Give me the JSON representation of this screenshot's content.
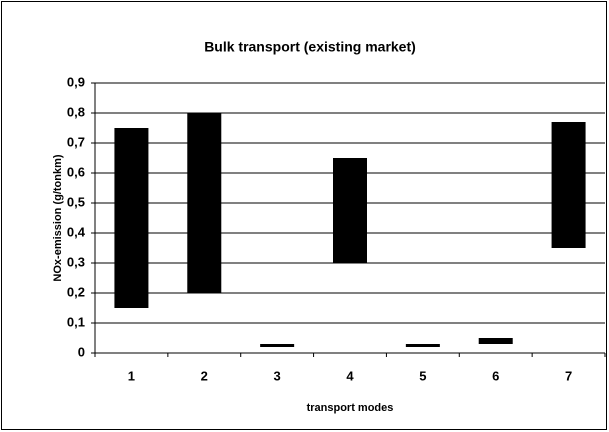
{
  "chart_data": {
    "type": "range-bar",
    "title": "Bulk transport (existing market)",
    "x_label": "transport modes",
    "y_label": "NOx-emission (g/tonkm)",
    "categories": [
      "1",
      "2",
      "3",
      "4",
      "5",
      "6",
      "7"
    ],
    "values": [
      [
        0.15,
        0.75
      ],
      [
        0.2,
        0.8
      ],
      [
        0.02,
        0.03
      ],
      [
        0.3,
        0.65
      ],
      [
        0.02,
        0.03
      ],
      [
        0.03,
        0.05
      ],
      [
        0.35,
        0.77
      ]
    ],
    "color": "#000000",
    "ylim": [
      0,
      0.9
    ],
    "yticks": [
      0,
      {
        "value": 0.1,
        "label": "0,1"
      },
      {
        "value": 0.2,
        "label": "0,2"
      },
      {
        "value": 0.3,
        "label": "0,3"
      },
      {
        "value": 0.4,
        "label": "0,4"
      },
      {
        "value": 0.5,
        "label": "0,5"
      },
      {
        "value": 0.6,
        "label": "0,6"
      },
      {
        "value": 0.7,
        "label": "0,7"
      },
      {
        "value": 0.8,
        "label": "0,8"
      },
      {
        "value": 0.9,
        "label": "0,9"
      }
    ],
    "grid": true
  }
}
